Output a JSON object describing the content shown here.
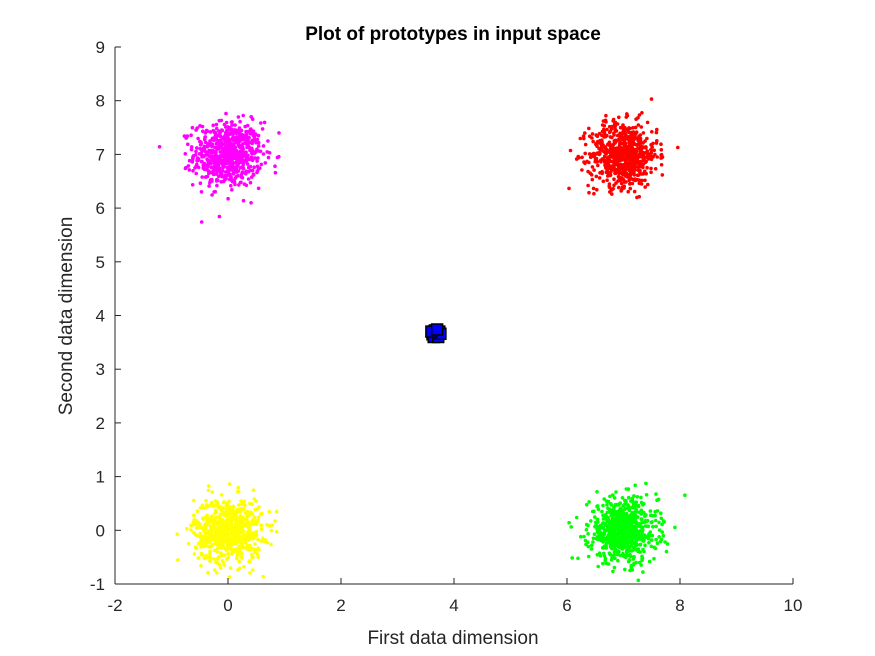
{
  "chart_data": {
    "type": "scatter",
    "title": "Plot of prototypes in input space",
    "xlabel": "First data dimension",
    "ylabel": "Second data dimension",
    "xlim": [
      -2,
      10
    ],
    "ylim": [
      -1,
      9
    ],
    "xticks": [
      -2,
      0,
      2,
      4,
      6,
      8,
      10
    ],
    "yticks": [
      -1,
      0,
      1,
      2,
      3,
      4,
      5,
      6,
      7,
      8,
      9
    ],
    "grid": false,
    "clusters": [
      {
        "color": "#ff00ff",
        "center": [
          0,
          7
        ],
        "spread": 0.3,
        "count": 700
      },
      {
        "color": "#ff0000",
        "center": [
          7,
          7
        ],
        "spread": 0.3,
        "count": 700
      },
      {
        "color": "#ffff00",
        "center": [
          0,
          0
        ],
        "spread": 0.3,
        "count": 700
      },
      {
        "color": "#00ff00",
        "center": [
          7,
          0
        ],
        "spread": 0.3,
        "count": 700
      }
    ],
    "prototypes": {
      "color": "#0000ff",
      "edge_color": "#000000",
      "points": [
        [
          3.62,
          3.65
        ],
        [
          3.66,
          3.72
        ],
        [
          3.7,
          3.63
        ],
        [
          3.74,
          3.7
        ],
        [
          3.68,
          3.67
        ],
        [
          3.64,
          3.6
        ],
        [
          3.72,
          3.6
        ],
        [
          3.76,
          3.66
        ],
        [
          3.6,
          3.7
        ],
        [
          3.7,
          3.74
        ]
      ]
    }
  }
}
